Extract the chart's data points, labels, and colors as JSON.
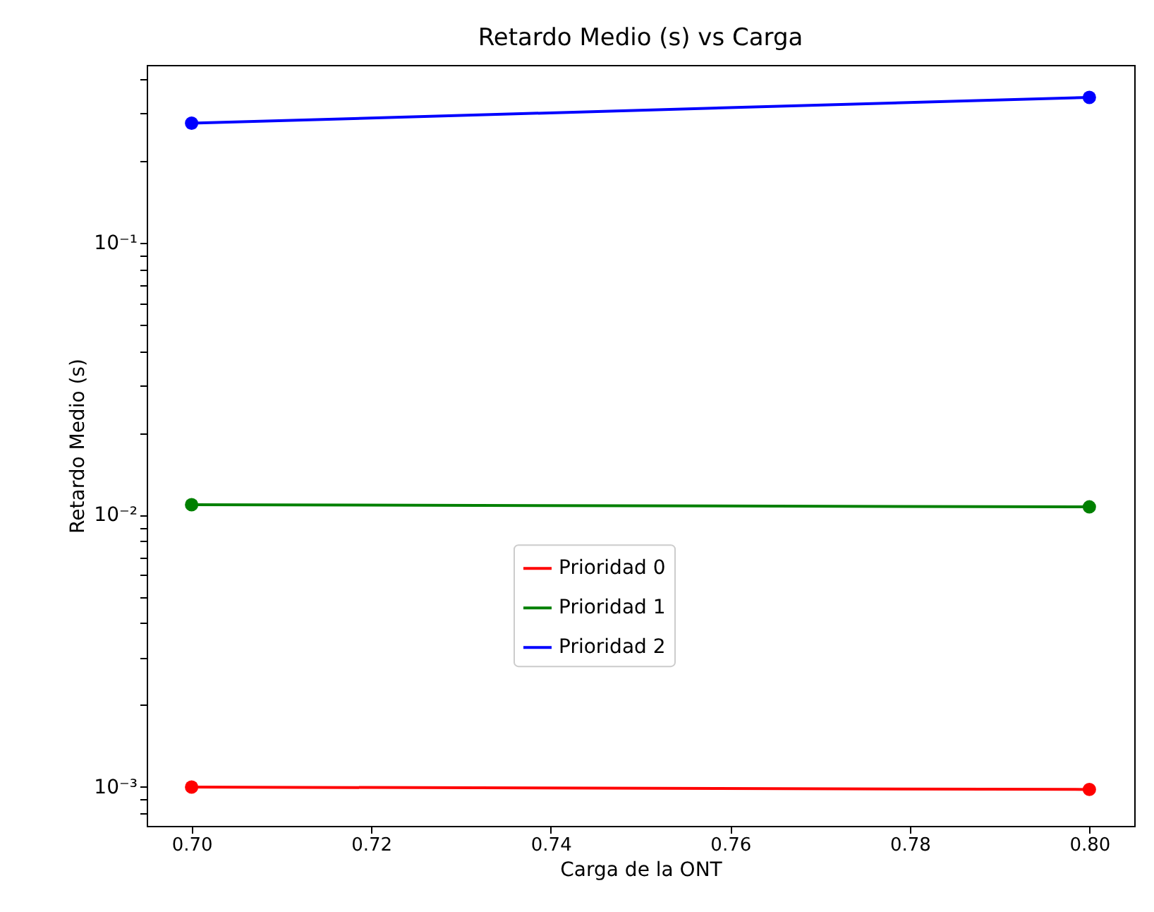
{
  "chart_data": {
    "type": "line",
    "title": "Retardo Medio (s) vs Carga",
    "xlabel": "Carga de la ONT",
    "ylabel": "Retardo Medio (s)",
    "x": [
      0.7,
      0.8
    ],
    "series": [
      {
        "name": "Prioridad 0",
        "color": "#ff0000",
        "values": [
          0.001,
          0.00098
        ]
      },
      {
        "name": "Prioridad 1",
        "color": "#008000",
        "values": [
          0.0109,
          0.0107
        ]
      },
      {
        "name": "Prioridad 2",
        "color": "#0000ff",
        "values": [
          0.275,
          0.342
        ]
      }
    ],
    "log": "y",
    "xlim": [
      0.695,
      0.805
    ],
    "xticks": [
      {
        "value": 0.7,
        "label": "0.70"
      },
      {
        "value": 0.72,
        "label": "0.72"
      },
      {
        "value": 0.74,
        "label": "0.74"
      },
      {
        "value": 0.76,
        "label": "0.76"
      },
      {
        "value": 0.78,
        "label": "0.78"
      },
      {
        "value": 0.8,
        "label": "0.80"
      }
    ],
    "ylim": [
      0.00072,
      0.45
    ],
    "yticks": [
      {
        "value": 0.0008,
        "label": null
      },
      {
        "value": 0.0009,
        "label": null
      },
      {
        "value": 0.001,
        "label": "10⁻³"
      },
      {
        "value": 0.002,
        "label": null
      },
      {
        "value": 0.003,
        "label": null
      },
      {
        "value": 0.004,
        "label": null
      },
      {
        "value": 0.005,
        "label": null
      },
      {
        "value": 0.006,
        "label": null
      },
      {
        "value": 0.007,
        "label": null
      },
      {
        "value": 0.008,
        "label": null
      },
      {
        "value": 0.009,
        "label": null
      },
      {
        "value": 0.01,
        "label": "10⁻²"
      },
      {
        "value": 0.02,
        "label": null
      },
      {
        "value": 0.03,
        "label": null
      },
      {
        "value": 0.04,
        "label": null
      },
      {
        "value": 0.05,
        "label": null
      },
      {
        "value": 0.06,
        "label": null
      },
      {
        "value": 0.07,
        "label": null
      },
      {
        "value": 0.08,
        "label": null
      },
      {
        "value": 0.09,
        "label": null
      },
      {
        "value": 0.1,
        "label": "10⁻¹"
      },
      {
        "value": 0.2,
        "label": null
      },
      {
        "value": 0.3,
        "label": null
      },
      {
        "value": 0.4,
        "label": null
      }
    ],
    "grid": false,
    "legend": "bottom",
    "marker": "circle",
    "line_style": "solid"
  }
}
